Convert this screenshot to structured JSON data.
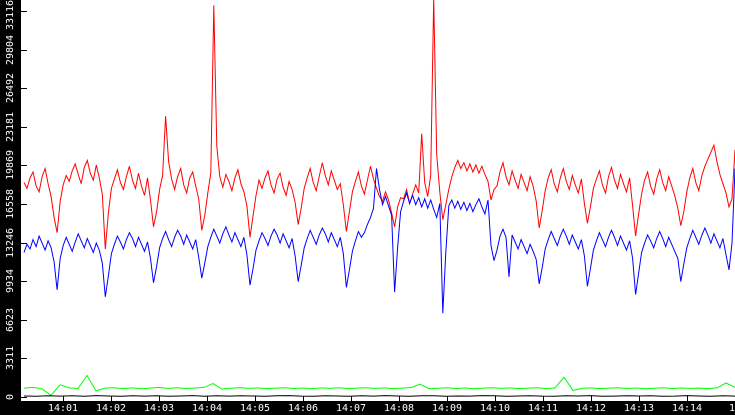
{
  "chart_data": {
    "type": "line",
    "title": "",
    "grid": false,
    "legend": false,
    "plot_bg_color": "#ffffff",
    "axis_band_color": "#000000",
    "axis_label_color": "#ffffff",
    "x_axis": {
      "tick_labels": [
        "14:01",
        "14:02",
        "14:03",
        "14:04",
        "14:05",
        "14:06",
        "14:07",
        "14:08",
        "14:09",
        "14:10",
        "14:11",
        "14:12",
        "14:13",
        "14:14",
        "14"
      ]
    },
    "y_axis": {
      "tick_values": [
        0,
        3311,
        6623,
        9934,
        13246,
        16558,
        19869,
        23181,
        26492,
        29804,
        33116
      ],
      "max": 33116,
      "ylim": [
        0,
        33116
      ]
    },
    "series": [
      {
        "name": "green-series",
        "color": "#00ff00",
        "values": [
          760,
          820,
          700,
          150,
          1050,
          780,
          730,
          1850,
          520,
          760,
          800,
          720,
          780,
          700,
          760,
          820,
          740,
          790,
          730,
          770,
          820,
          1150,
          690,
          750,
          810,
          740,
          780,
          720,
          760,
          800,
          730,
          770,
          710,
          780,
          740,
          790,
          720,
          760,
          800,
          740,
          780,
          720,
          760,
          810,
          1100,
          700,
          750,
          790,
          730,
          770,
          710,
          760,
          800,
          740,
          780,
          720,
          760,
          790,
          730,
          770,
          1700,
          560,
          740,
          780,
          720,
          760,
          800,
          730,
          770,
          710,
          750,
          790,
          730,
          770,
          740,
          760,
          720,
          780,
          1200,
          820
        ]
      },
      {
        "name": "black-series",
        "color": "#000000",
        "values": [
          90,
          60,
          110,
          80,
          100,
          70,
          120,
          90,
          60,
          100,
          80,
          110,
          70,
          90,
          120,
          60,
          100,
          80,
          110,
          90,
          70,
          100,
          120,
          80,
          60,
          110,
          90,
          70,
          100,
          80,
          120,
          90,
          60,
          100,
          110,
          70,
          90,
          80,
          120,
          100,
          60,
          90,
          110,
          80,
          70,
          100,
          90,
          120,
          60,
          80,
          110,
          90,
          100,
          70,
          80,
          120,
          90,
          60,
          100,
          80
        ]
      },
      {
        "name": "red-series",
        "color": "#ff0000",
        "values": [
          18400,
          17900,
          18800,
          19300,
          18100,
          17600,
          18900,
          19600,
          18300,
          17200,
          15400,
          14100,
          16800,
          18200,
          19000,
          18500,
          19400,
          20000,
          19100,
          18300,
          19700,
          20300,
          19200,
          18600,
          19900,
          18800,
          17400,
          12700,
          15800,
          17900,
          18700,
          19500,
          18400,
          17800,
          18900,
          19800,
          18600,
          17900,
          19200,
          18100,
          17300,
          18800,
          16900,
          14600,
          15900,
          17800,
          19000,
          24100,
          20200,
          18700,
          17800,
          18900,
          19600,
          18200,
          17500,
          18800,
          19300,
          18100,
          17000,
          14300,
          15600,
          17500,
          19200,
          33600,
          21500,
          18900,
          18000,
          19100,
          18500,
          17700,
          18800,
          19500,
          18300,
          17600,
          16400,
          13700,
          15500,
          17300,
          18600,
          17900,
          18800,
          19400,
          18200,
          17500,
          18700,
          19200,
          18000,
          17300,
          18500,
          17800,
          16700,
          14800,
          16200,
          17900,
          18800,
          19600,
          18400,
          17700,
          18900,
          20100,
          19000,
          18200,
          19400,
          18600,
          17800,
          18300,
          16500,
          14200,
          15900,
          17600,
          18500,
          19300,
          18100,
          17400,
          18600,
          19800,
          18700,
          17900,
          17200,
          16800,
          17600,
          16900,
          15800,
          14600,
          16300,
          17100,
          17000,
          17800,
          16600,
          17400,
          18200,
          17500,
          22600,
          18400,
          17200,
          19000,
          34200,
          20800,
          17600,
          15200,
          16500,
          17800,
          18900,
          19700,
          20300,
          19600,
          20100,
          19400,
          20000,
          19300,
          19900,
          19200,
          19800,
          19100,
          18500,
          16900,
          17800,
          18100,
          19300,
          20100,
          18900,
          18200,
          19400,
          18600,
          17900,
          19100,
          18400,
          17700,
          18900,
          18100,
          16800,
          14500,
          16000,
          17700,
          18800,
          19500,
          18300,
          17600,
          18800,
          19600,
          18500,
          17800,
          19000,
          18200,
          17500,
          18700,
          16600,
          14900,
          16300,
          17900,
          18700,
          19400,
          18200,
          17500,
          18900,
          19700,
          18600,
          17900,
          19100,
          18300,
          17600,
          18800,
          16400,
          13800,
          15700,
          17400,
          18600,
          19300,
          18100,
          17400,
          18700,
          19500,
          18400,
          17700,
          18900,
          18100,
          17300,
          16200,
          14700,
          15900,
          17600,
          18800,
          19600,
          18400,
          17700,
          19000,
          19800,
          20400,
          21000,
          21600,
          20200,
          19100,
          18300,
          17500,
          16300,
          17000,
          21200
        ]
      },
      {
        "name": "blue-series",
        "color": "#0000ff",
        "values": [
          12400,
          13100,
          12700,
          13500,
          12900,
          13800,
          13200,
          12600,
          13400,
          12800,
          11600,
          9200,
          11900,
          13000,
          13700,
          13100,
          12500,
          13300,
          14000,
          13400,
          12800,
          13600,
          13000,
          12400,
          13200,
          12600,
          11500,
          8600,
          10400,
          12300,
          13100,
          13800,
          13300,
          12700,
          13500,
          14100,
          13600,
          12900,
          13700,
          13100,
          12500,
          13300,
          11900,
          9800,
          11200,
          12800,
          13600,
          14200,
          13500,
          12900,
          13700,
          14300,
          13800,
          13100,
          13900,
          13300,
          12700,
          13500,
          12000,
          10200,
          11500,
          12900,
          13700,
          14400,
          13800,
          13200,
          14000,
          14600,
          13900,
          13300,
          14100,
          13500,
          12900,
          13700,
          12200,
          9600,
          11000,
          12600,
          13400,
          14100,
          13600,
          13000,
          13800,
          14400,
          13900,
          13200,
          14000,
          13400,
          12800,
          13600,
          12100,
          9900,
          11300,
          12800,
          13600,
          14300,
          13700,
          13100,
          13900,
          14500,
          14000,
          13300,
          14100,
          13500,
          12900,
          13700,
          12300,
          9400,
          10900,
          12500,
          13400,
          14200,
          13700,
          14100,
          14800,
          15400,
          16200,
          19600,
          17800,
          16500,
          17200,
          16400,
          15600,
          9000,
          12800,
          15900,
          16800,
          17500,
          16600,
          17300,
          16500,
          17100,
          16300,
          17000,
          16200,
          16900,
          16100,
          15400,
          16600,
          7200,
          12400,
          16400,
          16900,
          16200,
          16800,
          16100,
          16700,
          16000,
          16600,
          15900,
          16500,
          17000,
          16300,
          15700,
          16900,
          13000,
          11700,
          12600,
          13800,
          14400,
          13700,
          10300,
          13900,
          13300,
          12700,
          13500,
          12900,
          12300,
          13100,
          12500,
          11800,
          9700,
          11100,
          12700,
          13500,
          14200,
          13600,
          13000,
          13800,
          14400,
          13800,
          13100,
          13900,
          13300,
          12700,
          13500,
          12100,
          9500,
          11000,
          12600,
          13400,
          14100,
          13500,
          12900,
          13700,
          14300,
          13700,
          13000,
          13800,
          13200,
          12600,
          13400,
          11900,
          8800,
          10600,
          12400,
          13200,
          13900,
          13400,
          12800,
          13600,
          14200,
          13600,
          12900,
          13700,
          13100,
          12500,
          11900,
          9900,
          11400,
          12800,
          13600,
          14300,
          13700,
          13100,
          13900,
          14500,
          13900,
          13200,
          14000,
          13400,
          12800,
          13600,
          12200,
          10900,
          13200,
          19600
        ]
      }
    ]
  }
}
